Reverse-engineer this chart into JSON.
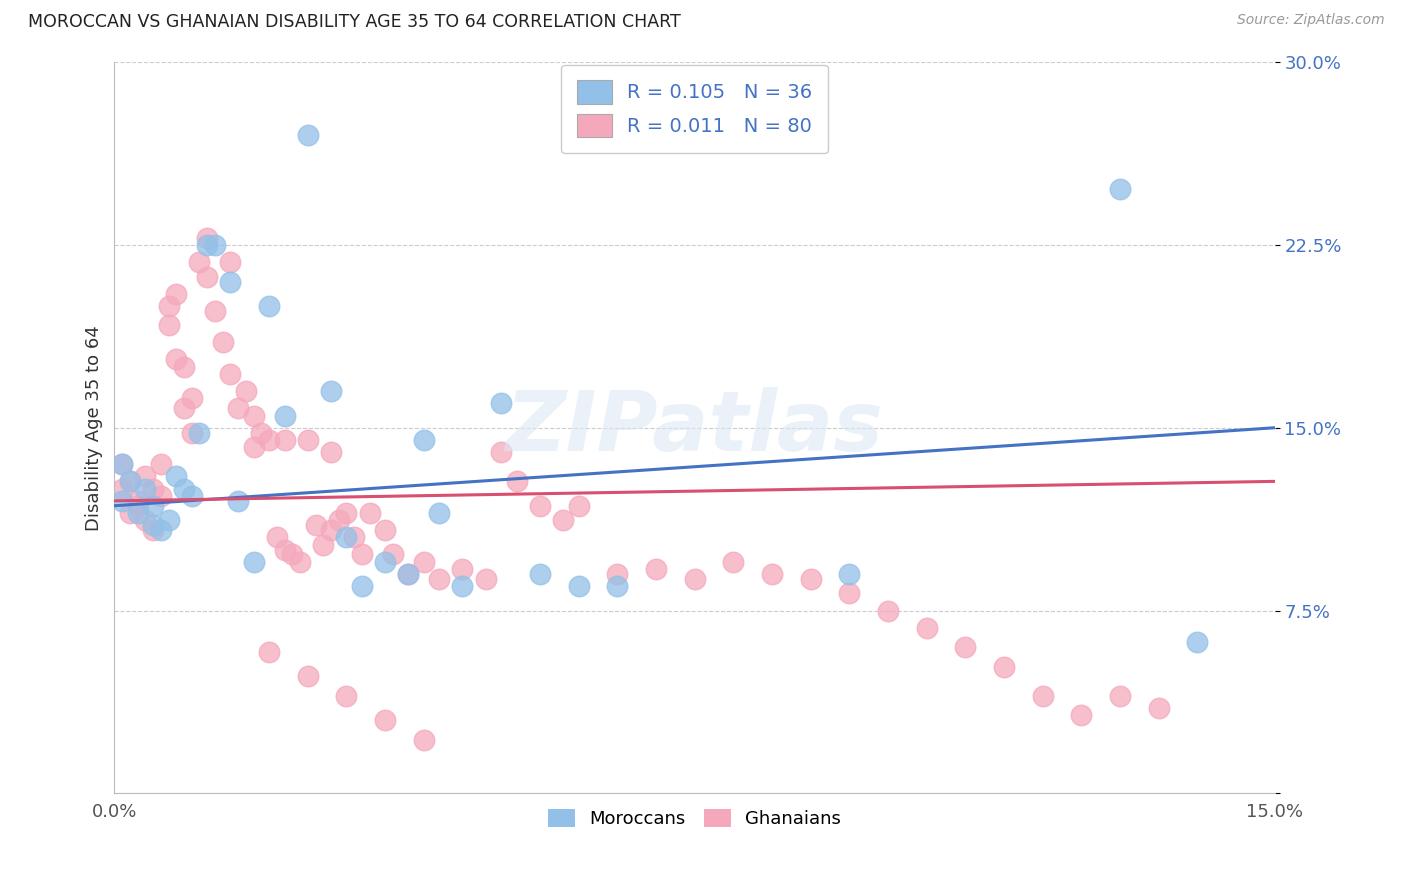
{
  "title": "MOROCCAN VS GHANAIAN DISABILITY AGE 35 TO 64 CORRELATION CHART",
  "source": "Source: ZipAtlas.com",
  "ylabel": "Disability Age 35 to 64",
  "xlim": [
    0.0,
    0.15
  ],
  "ylim": [
    0.0,
    0.3
  ],
  "moroccan_color": "#92C0E8",
  "ghanaian_color": "#F5A8BC",
  "moroccan_line_color": "#4472C4",
  "ghanaian_line_color": "#D94F70",
  "moroccan_R": 0.105,
  "moroccan_N": 36,
  "ghanaian_R": 0.011,
  "ghanaian_N": 80,
  "background_color": "#FFFFFF",
  "grid_color": "#CCCCCC",
  "tick_color_y": "#4472C4",
  "tick_color_x": "#555555",
  "moroccan_x": [
    0.001,
    0.001,
    0.002,
    0.003,
    0.004,
    0.005,
    0.005,
    0.006,
    0.007,
    0.008,
    0.009,
    0.01,
    0.011,
    0.012,
    0.013,
    0.015,
    0.016,
    0.018,
    0.02,
    0.022,
    0.025,
    0.028,
    0.03,
    0.032,
    0.035,
    0.038,
    0.04,
    0.042,
    0.045,
    0.05,
    0.055,
    0.06,
    0.065,
    0.095,
    0.13,
    0.14
  ],
  "moroccan_y": [
    0.135,
    0.12,
    0.128,
    0.115,
    0.125,
    0.118,
    0.11,
    0.108,
    0.112,
    0.13,
    0.125,
    0.122,
    0.148,
    0.225,
    0.225,
    0.21,
    0.12,
    0.095,
    0.2,
    0.155,
    0.27,
    0.165,
    0.105,
    0.085,
    0.095,
    0.09,
    0.145,
    0.115,
    0.085,
    0.16,
    0.09,
    0.085,
    0.085,
    0.09,
    0.248,
    0.062
  ],
  "ghanaian_x": [
    0.001,
    0.001,
    0.002,
    0.002,
    0.003,
    0.003,
    0.004,
    0.004,
    0.005,
    0.005,
    0.006,
    0.006,
    0.007,
    0.007,
    0.008,
    0.008,
    0.009,
    0.009,
    0.01,
    0.01,
    0.011,
    0.012,
    0.013,
    0.014,
    0.015,
    0.016,
    0.017,
    0.018,
    0.019,
    0.02,
    0.021,
    0.022,
    0.023,
    0.024,
    0.025,
    0.026,
    0.027,
    0.028,
    0.029,
    0.03,
    0.031,
    0.032,
    0.033,
    0.035,
    0.036,
    0.038,
    0.04,
    0.042,
    0.045,
    0.048,
    0.05,
    0.052,
    0.055,
    0.058,
    0.06,
    0.065,
    0.07,
    0.075,
    0.08,
    0.085,
    0.09,
    0.095,
    0.1,
    0.105,
    0.11,
    0.115,
    0.12,
    0.125,
    0.13,
    0.135,
    0.02,
    0.025,
    0.03,
    0.035,
    0.04,
    0.012,
    0.015,
    0.018,
    0.022,
    0.028
  ],
  "ghanaian_y": [
    0.125,
    0.135,
    0.128,
    0.115,
    0.12,
    0.118,
    0.112,
    0.13,
    0.125,
    0.108,
    0.122,
    0.135,
    0.2,
    0.192,
    0.205,
    0.178,
    0.175,
    0.158,
    0.162,
    0.148,
    0.218,
    0.212,
    0.198,
    0.185,
    0.172,
    0.158,
    0.165,
    0.155,
    0.148,
    0.145,
    0.105,
    0.1,
    0.098,
    0.095,
    0.145,
    0.11,
    0.102,
    0.108,
    0.112,
    0.115,
    0.105,
    0.098,
    0.115,
    0.108,
    0.098,
    0.09,
    0.095,
    0.088,
    0.092,
    0.088,
    0.14,
    0.128,
    0.118,
    0.112,
    0.118,
    0.09,
    0.092,
    0.088,
    0.095,
    0.09,
    0.088,
    0.082,
    0.075,
    0.068,
    0.06,
    0.052,
    0.04,
    0.032,
    0.04,
    0.035,
    0.058,
    0.048,
    0.04,
    0.03,
    0.022,
    0.228,
    0.218,
    0.142,
    0.145,
    0.14
  ],
  "moroccan_line_start_y": 0.118,
  "moroccan_line_end_y": 0.15,
  "ghanaian_line_start_y": 0.12,
  "ghanaian_line_end_y": 0.128,
  "legend_blue_label": "R = 0.105   N = 36",
  "legend_pink_label": "R = 0.011   N = 80",
  "bottom_legend_moroccan": "Moroccans",
  "bottom_legend_ghanaian": "Ghanaians"
}
